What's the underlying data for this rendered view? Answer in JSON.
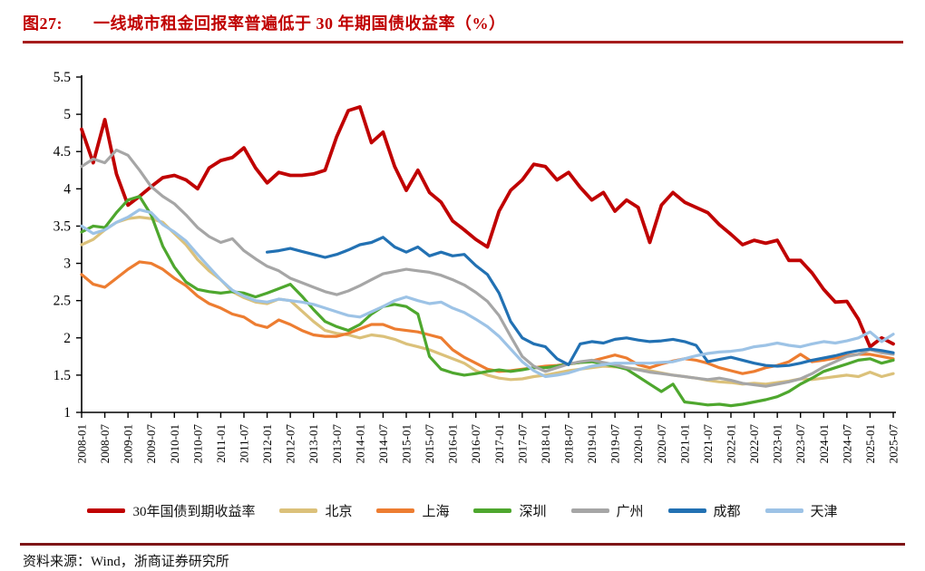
{
  "figure": {
    "label": "图27:",
    "title": "一线城市租金回报率普遍低于 30 年期国债收益率（%）"
  },
  "source": {
    "text": "资料来源：Wind，浙商证券研究所"
  },
  "colors": {
    "title_red": "#C00000",
    "top_rule": "#A61D1D",
    "bottom_rule": "#7E1517",
    "axis": "#000000",
    "background": "#ffffff"
  },
  "chart_data": {
    "type": "line",
    "title": "一线城市租金回报率普遍低于 30 年期国债收益率（%）",
    "xlabel": "",
    "ylabel": "",
    "ylim": [
      1,
      5.5
    ],
    "grid": false,
    "legend_position": "bottom",
    "x_unit": "quarterly samples from 2008-01 to 2025-07",
    "y_ticks": [
      "1",
      "1.5",
      "2",
      "2.5",
      "3",
      "3.5",
      "4",
      "4.5",
      "5",
      "5.5"
    ],
    "x_tick_labels": [
      "2008-01",
      "2008-07",
      "2009-01",
      "2009-07",
      "2010-01",
      "2010-07",
      "2011-01",
      "2011-07",
      "2012-01",
      "2012-07",
      "2013-01",
      "2013-07",
      "2014-01",
      "2014-07",
      "2015-01",
      "2015-07",
      "2016-01",
      "2016-07",
      "2017-01",
      "2017-07",
      "2018-01",
      "2018-07",
      "2019-01",
      "2019-07",
      "2020-01",
      "2020-07",
      "2021-01",
      "2021-07",
      "2022-01",
      "2022-07",
      "2023-01",
      "2023-07",
      "2024-01",
      "2024-07",
      "2025-01",
      "2025-07"
    ],
    "series": [
      {
        "name": "30年国债到期收益率",
        "color": "#C00000",
        "width": 3.8,
        "values": [
          4.8,
          4.35,
          4.93,
          4.2,
          3.78,
          3.9,
          4.03,
          4.15,
          4.18,
          4.12,
          4.0,
          4.28,
          4.38,
          4.42,
          4.55,
          4.28,
          4.08,
          4.22,
          4.18,
          4.18,
          4.2,
          4.25,
          4.7,
          5.05,
          5.1,
          4.62,
          4.76,
          4.3,
          3.98,
          4.25,
          3.95,
          3.82,
          3.57,
          3.45,
          3.32,
          3.22,
          3.7,
          3.98,
          4.12,
          4.33,
          4.3,
          4.12,
          4.22,
          4.02,
          3.85,
          3.95,
          3.7,
          3.85,
          3.75,
          3.28,
          3.78,
          3.95,
          3.82,
          3.75,
          3.68,
          3.52,
          3.39,
          3.25,
          3.31,
          3.27,
          3.31,
          3.04,
          3.04,
          2.87,
          2.65,
          2.48,
          2.49,
          2.25,
          1.88,
          2.0,
          1.92
        ]
      },
      {
        "name": "北京",
        "color": "#DBC17A",
        "width": 3.2,
        "values": [
          3.25,
          3.32,
          3.45,
          3.55,
          3.6,
          3.62,
          3.6,
          3.55,
          3.4,
          3.25,
          3.05,
          2.9,
          2.78,
          2.62,
          2.54,
          2.48,
          2.46,
          2.52,
          2.5,
          2.36,
          2.22,
          2.1,
          2.06,
          2.04,
          2.0,
          2.04,
          2.02,
          1.98,
          1.92,
          1.88,
          1.84,
          1.78,
          1.72,
          1.66,
          1.56,
          1.5,
          1.46,
          1.44,
          1.45,
          1.48,
          1.5,
          1.53,
          1.56,
          1.58,
          1.6,
          1.62,
          1.61,
          1.6,
          1.58,
          1.56,
          1.53,
          1.5,
          1.48,
          1.46,
          1.43,
          1.41,
          1.4,
          1.38,
          1.39,
          1.38,
          1.4,
          1.42,
          1.45,
          1.44,
          1.46,
          1.48,
          1.5,
          1.48,
          1.54,
          1.48,
          1.52
        ]
      },
      {
        "name": "上海",
        "color": "#ED7D31",
        "width": 3.2,
        "values": [
          2.85,
          2.72,
          2.68,
          2.8,
          2.92,
          3.02,
          3.0,
          2.92,
          2.8,
          2.7,
          2.56,
          2.46,
          2.4,
          2.32,
          2.28,
          2.18,
          2.14,
          2.24,
          2.18,
          2.1,
          2.04,
          2.02,
          2.02,
          2.06,
          2.12,
          2.18,
          2.18,
          2.12,
          2.1,
          2.08,
          2.04,
          2.0,
          1.84,
          1.74,
          1.66,
          1.58,
          1.55,
          1.56,
          1.58,
          1.6,
          1.62,
          1.63,
          1.65,
          1.67,
          1.69,
          1.73,
          1.77,
          1.73,
          1.64,
          1.6,
          1.65,
          1.69,
          1.72,
          1.7,
          1.66,
          1.6,
          1.56,
          1.52,
          1.55,
          1.6,
          1.63,
          1.68,
          1.78,
          1.68,
          1.7,
          1.73,
          1.76,
          1.78,
          1.78,
          1.75,
          1.72
        ]
      },
      {
        "name": "深圳",
        "color": "#4EA72E",
        "width": 3.2,
        "values": [
          3.42,
          3.5,
          3.48,
          3.68,
          3.85,
          3.9,
          3.65,
          3.23,
          2.95,
          2.75,
          2.65,
          2.62,
          2.6,
          2.62,
          2.6,
          2.55,
          2.6,
          2.66,
          2.72,
          2.56,
          2.38,
          2.22,
          2.15,
          2.1,
          2.18,
          2.32,
          2.42,
          2.45,
          2.42,
          2.32,
          1.75,
          1.58,
          1.53,
          1.5,
          1.52,
          1.55,
          1.57,
          1.55,
          1.57,
          1.6,
          1.6,
          1.62,
          1.65,
          1.67,
          1.68,
          1.65,
          1.62,
          1.58,
          1.48,
          1.38,
          1.28,
          1.38,
          1.14,
          1.12,
          1.1,
          1.11,
          1.09,
          1.11,
          1.14,
          1.17,
          1.21,
          1.28,
          1.38,
          1.46,
          1.55,
          1.6,
          1.65,
          1.7,
          1.72,
          1.66,
          1.7
        ]
      },
      {
        "name": "广州",
        "color": "#A6A6A6",
        "width": 3.2,
        "values": [
          4.3,
          4.4,
          4.35,
          4.52,
          4.45,
          4.25,
          4.03,
          3.9,
          3.8,
          3.65,
          3.48,
          3.36,
          3.28,
          3.33,
          3.17,
          3.06,
          2.96,
          2.9,
          2.8,
          2.74,
          2.68,
          2.62,
          2.58,
          2.63,
          2.7,
          2.78,
          2.86,
          2.89,
          2.92,
          2.9,
          2.88,
          2.84,
          2.78,
          2.71,
          2.61,
          2.49,
          2.3,
          2.02,
          1.75,
          1.62,
          1.55,
          1.6,
          1.65,
          1.68,
          1.7,
          1.67,
          1.64,
          1.6,
          1.57,
          1.54,
          1.52,
          1.5,
          1.48,
          1.46,
          1.44,
          1.46,
          1.43,
          1.39,
          1.37,
          1.35,
          1.38,
          1.41,
          1.45,
          1.52,
          1.61,
          1.68,
          1.75,
          1.78,
          1.84,
          1.8,
          1.78
        ]
      },
      {
        "name": "成都",
        "color": "#2271B3",
        "width": 3.2,
        "values": [
          null,
          null,
          null,
          null,
          null,
          null,
          null,
          null,
          null,
          null,
          null,
          null,
          null,
          null,
          null,
          null,
          3.15,
          3.17,
          3.2,
          3.16,
          3.12,
          3.08,
          3.12,
          3.18,
          3.25,
          3.28,
          3.35,
          3.22,
          3.15,
          3.22,
          3.1,
          3.15,
          3.1,
          3.12,
          2.97,
          2.85,
          2.6,
          2.22,
          2.0,
          1.92,
          1.88,
          1.72,
          1.64,
          1.92,
          1.95,
          1.93,
          1.98,
          2.0,
          1.97,
          1.95,
          1.96,
          1.98,
          1.95,
          1.9,
          1.68,
          1.71,
          1.74,
          1.7,
          1.66,
          1.63,
          1.62,
          1.63,
          1.66,
          1.7,
          1.73,
          1.76,
          1.8,
          1.83,
          1.85,
          1.83,
          1.8
        ]
      },
      {
        "name": "天津",
        "color": "#9DC3E6",
        "width": 3.2,
        "values": [
          3.5,
          3.4,
          3.45,
          3.55,
          3.62,
          3.72,
          3.68,
          3.52,
          3.42,
          3.3,
          3.12,
          2.95,
          2.78,
          2.64,
          2.56,
          2.5,
          2.48,
          2.52,
          2.5,
          2.48,
          2.45,
          2.4,
          2.35,
          2.3,
          2.28,
          2.35,
          2.42,
          2.5,
          2.55,
          2.5,
          2.46,
          2.48,
          2.4,
          2.34,
          2.25,
          2.15,
          2.02,
          1.85,
          1.68,
          1.56,
          1.48,
          1.5,
          1.53,
          1.58,
          1.62,
          1.64,
          1.66,
          1.66,
          1.66,
          1.66,
          1.67,
          1.68,
          1.72,
          1.76,
          1.79,
          1.81,
          1.82,
          1.84,
          1.88,
          1.9,
          1.93,
          1.9,
          1.88,
          1.92,
          1.95,
          1.93,
          1.96,
          2.0,
          2.08,
          1.95,
          2.05
        ]
      }
    ]
  }
}
